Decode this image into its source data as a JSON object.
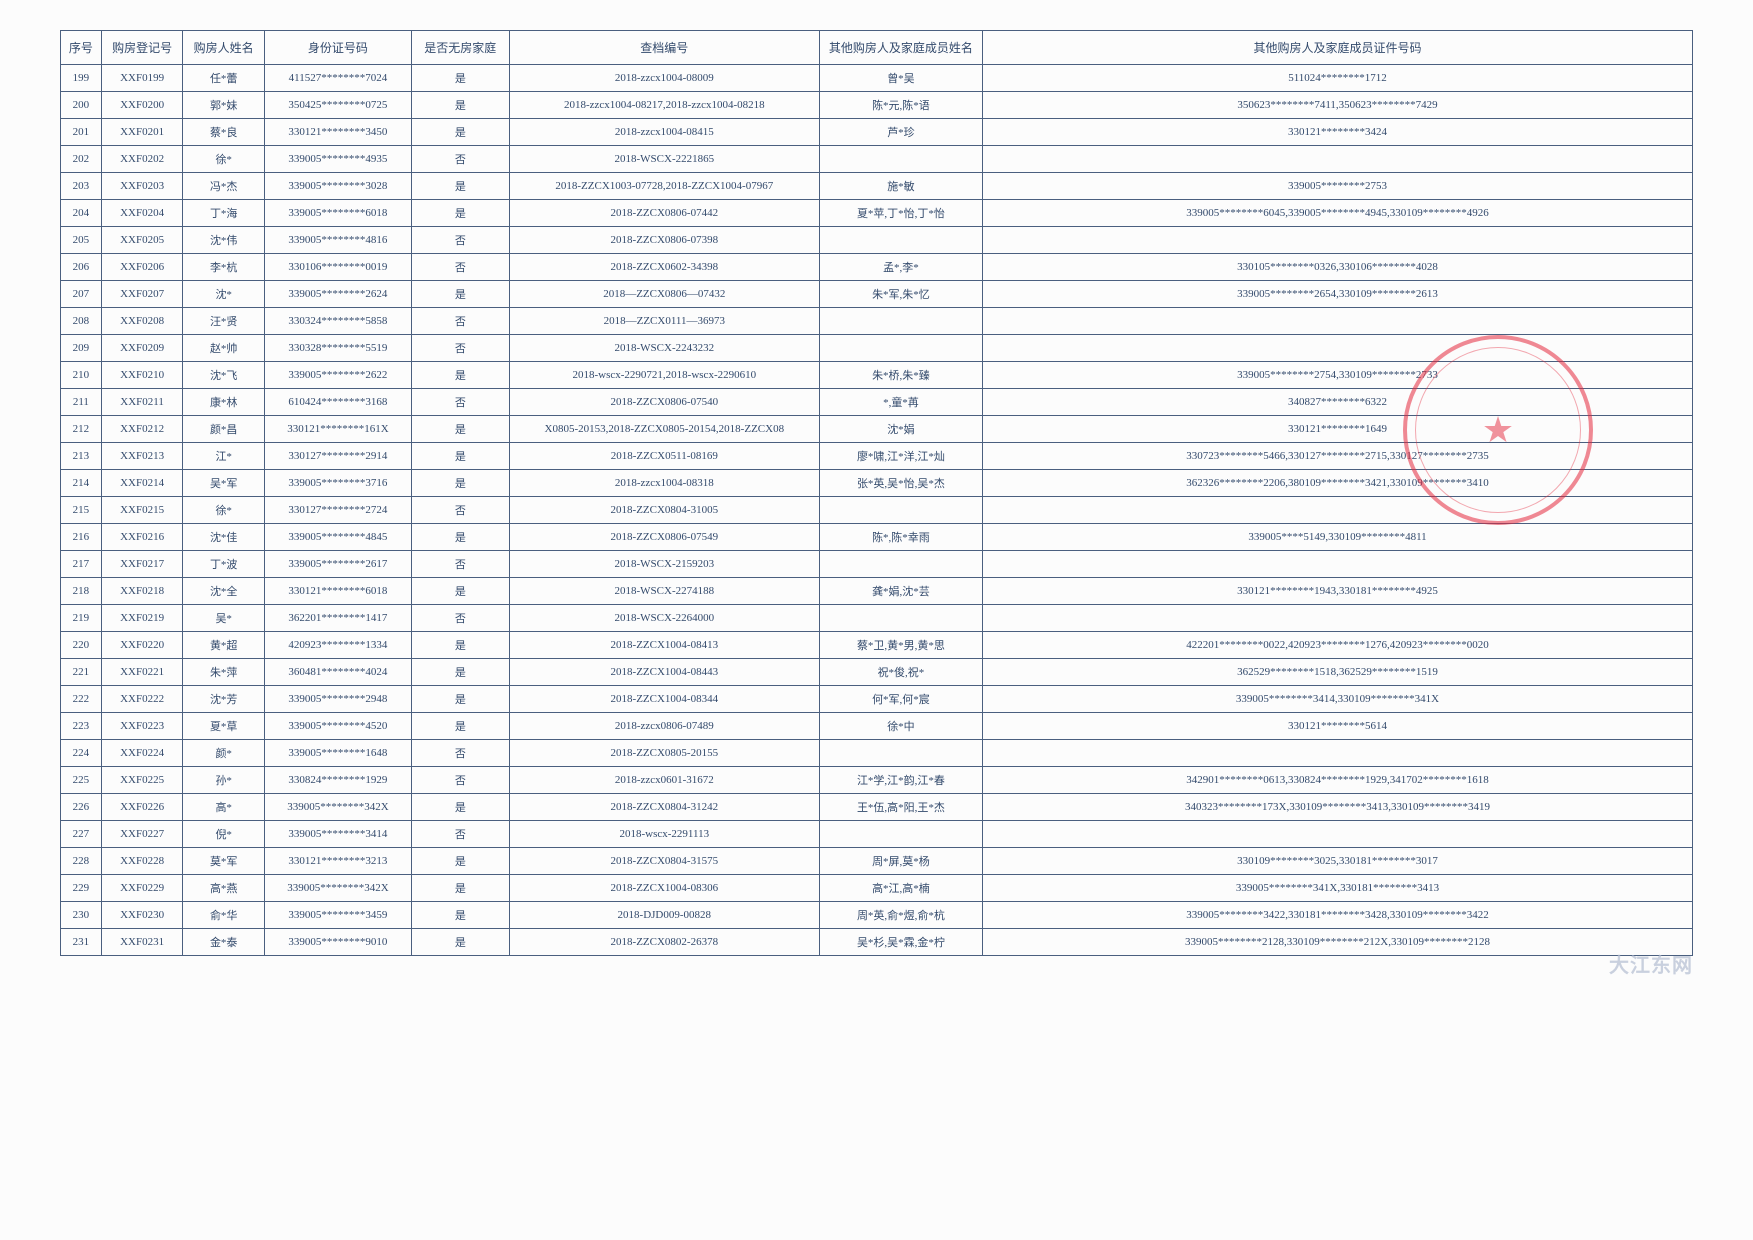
{
  "headers": {
    "seq": "序号",
    "reg": "购房登记号",
    "name": "购房人姓名",
    "id": "身份证号码",
    "nohouse": "是否无房家庭",
    "archive": "查档编号",
    "family": "其他购房人及家庭成员姓名",
    "family_id": "其他购房人及家庭成员证件号码"
  },
  "rows": [
    {
      "seq": "199",
      "reg": "XXF0199",
      "name": "任*蕾",
      "id": "411527********7024",
      "nohouse": "是",
      "archive": "2018-zzcx1004-08009",
      "family": "曾*吴",
      "family_id": "511024********1712"
    },
    {
      "seq": "200",
      "reg": "XXF0200",
      "name": "郭*妹",
      "id": "350425********0725",
      "nohouse": "是",
      "archive": "2018-zzcx1004-08217,2018-zzcx1004-08218",
      "family": "陈*元,陈*语",
      "family_id": "350623********7411,350623********7429"
    },
    {
      "seq": "201",
      "reg": "XXF0201",
      "name": "蔡*良",
      "id": "330121********3450",
      "nohouse": "是",
      "archive": "2018-zzcx1004-08415",
      "family": "芦*珍",
      "family_id": "330121********3424"
    },
    {
      "seq": "202",
      "reg": "XXF0202",
      "name": "徐*",
      "id": "339005********4935",
      "nohouse": "否",
      "archive": "2018-WSCX-2221865",
      "family": "",
      "family_id": ""
    },
    {
      "seq": "203",
      "reg": "XXF0203",
      "name": "冯*杰",
      "id": "339005********3028",
      "nohouse": "是",
      "archive": "2018-ZZCX1003-07728,2018-ZZCX1004-07967",
      "family": "施*敏",
      "family_id": "339005********2753"
    },
    {
      "seq": "204",
      "reg": "XXF0204",
      "name": "丁*海",
      "id": "339005********6018",
      "nohouse": "是",
      "archive": "2018-ZZCX0806-07442",
      "family": "夏*苹,丁*怡,丁*怡",
      "family_id": "339005********6045,339005********4945,330109********4926"
    },
    {
      "seq": "205",
      "reg": "XXF0205",
      "name": "沈*伟",
      "id": "339005********4816",
      "nohouse": "否",
      "archive": "2018-ZZCX0806-07398",
      "family": "",
      "family_id": ""
    },
    {
      "seq": "206",
      "reg": "XXF0206",
      "name": "李*杭",
      "id": "330106********0019",
      "nohouse": "否",
      "archive": "2018-ZZCX0602-34398",
      "family": "孟*,李*",
      "family_id": "330105********0326,330106********4028"
    },
    {
      "seq": "207",
      "reg": "XXF0207",
      "name": "沈*",
      "id": "339005********2624",
      "nohouse": "是",
      "archive": "2018—ZZCX0806—07432",
      "family": "朱*军,朱*忆",
      "family_id": "339005********2654,330109********2613"
    },
    {
      "seq": "208",
      "reg": "XXF0208",
      "name": "汪*贤",
      "id": "330324********5858",
      "nohouse": "否",
      "archive": "2018—ZZCX0111—36973",
      "family": "",
      "family_id": ""
    },
    {
      "seq": "209",
      "reg": "XXF0209",
      "name": "赵*帅",
      "id": "330328********5519",
      "nohouse": "否",
      "archive": "2018-WSCX-2243232",
      "family": "",
      "family_id": ""
    },
    {
      "seq": "210",
      "reg": "XXF0210",
      "name": "沈*飞",
      "id": "339005********2622",
      "nohouse": "是",
      "archive": "2018-wscx-2290721,2018-wscx-2290610",
      "family": "朱*桥,朱*臻",
      "family_id": "339005********2754,330109********2733"
    },
    {
      "seq": "211",
      "reg": "XXF0211",
      "name": "康*林",
      "id": "610424********3168",
      "nohouse": "否",
      "archive": "2018-ZZCX0806-07540",
      "family": "*,童*苒",
      "family_id": "340827********6322"
    },
    {
      "seq": "212",
      "reg": "XXF0212",
      "name": "颜*昌",
      "id": "330121********161X",
      "nohouse": "是",
      "archive": "X0805-20153,2018-ZZCX0805-20154,2018-ZZCX08",
      "family": "沈*娟",
      "family_id": "330121********1649"
    },
    {
      "seq": "213",
      "reg": "XXF0213",
      "name": "江*",
      "id": "330127********2914",
      "nohouse": "是",
      "archive": "2018-ZZCX0511-08169",
      "family": "廖*啸,江*洋,江*灿",
      "family_id": "330723********5466,330127********2715,330127********2735"
    },
    {
      "seq": "214",
      "reg": "XXF0214",
      "name": "吴*军",
      "id": "339005********3716",
      "nohouse": "是",
      "archive": "2018-zzcx1004-08318",
      "family": "张*英,吴*怡,吴*杰",
      "family_id": "362326********2206,380109********3421,330109********3410"
    },
    {
      "seq": "215",
      "reg": "XXF0215",
      "name": "徐*",
      "id": "330127********2724",
      "nohouse": "否",
      "archive": "2018-ZZCX0804-31005",
      "family": "",
      "family_id": ""
    },
    {
      "seq": "216",
      "reg": "XXF0216",
      "name": "沈*佳",
      "id": "339005********4845",
      "nohouse": "是",
      "archive": "2018-ZZCX0806-07549",
      "family": "陈*,陈*幸雨",
      "family_id": "339005****5149,330109********4811"
    },
    {
      "seq": "217",
      "reg": "XXF0217",
      "name": "丁*波",
      "id": "339005********2617",
      "nohouse": "否",
      "archive": "2018-WSCX-2159203",
      "family": "",
      "family_id": ""
    },
    {
      "seq": "218",
      "reg": "XXF0218",
      "name": "沈*全",
      "id": "330121********6018",
      "nohouse": "是",
      "archive": "2018-WSCX-2274188",
      "family": "龚*娟,沈*芸",
      "family_id": "330121********1943,330181********4925"
    },
    {
      "seq": "219",
      "reg": "XXF0219",
      "name": "吴*",
      "id": "362201********1417",
      "nohouse": "否",
      "archive": "2018-WSCX-2264000",
      "family": "",
      "family_id": ""
    },
    {
      "seq": "220",
      "reg": "XXF0220",
      "name": "黄*超",
      "id": "420923********1334",
      "nohouse": "是",
      "archive": "2018-ZZCX1004-08413",
      "family": "蔡*卫,黄*男,黄*思",
      "family_id": "422201********0022,420923********1276,420923********0020"
    },
    {
      "seq": "221",
      "reg": "XXF0221",
      "name": "朱*萍",
      "id": "360481********4024",
      "nohouse": "是",
      "archive": "2018-ZZCX1004-08443",
      "family": "祝*俊,祝*",
      "family_id": "362529********1518,362529********1519"
    },
    {
      "seq": "222",
      "reg": "XXF0222",
      "name": "沈*芳",
      "id": "339005********2948",
      "nohouse": "是",
      "archive": "2018-ZZCX1004-08344",
      "family": "何*军,何*宸",
      "family_id": "339005********3414,330109********341X"
    },
    {
      "seq": "223",
      "reg": "XXF0223",
      "name": "夏*草",
      "id": "339005********4520",
      "nohouse": "是",
      "archive": "2018-zzcx0806-07489",
      "family": "徐*中",
      "family_id": "330121********5614"
    },
    {
      "seq": "224",
      "reg": "XXF0224",
      "name": "颜*",
      "id": "339005********1648",
      "nohouse": "否",
      "archive": "2018-ZZCX0805-20155",
      "family": "",
      "family_id": ""
    },
    {
      "seq": "225",
      "reg": "XXF0225",
      "name": "孙*",
      "id": "330824********1929",
      "nohouse": "否",
      "archive": "2018-zzcx0601-31672",
      "family": "江*学,江*韵,江*春",
      "family_id": "342901********0613,330824********1929,341702********1618"
    },
    {
      "seq": "226",
      "reg": "XXF0226",
      "name": "高*",
      "id": "339005********342X",
      "nohouse": "是",
      "archive": "2018-ZZCX0804-31242",
      "family": "王*伍,高*阳,王*杰",
      "family_id": "340323********173X,330109********3413,330109********3419"
    },
    {
      "seq": "227",
      "reg": "XXF0227",
      "name": "倪*",
      "id": "339005********3414",
      "nohouse": "否",
      "archive": "2018-wscx-2291113",
      "family": "",
      "family_id": ""
    },
    {
      "seq": "228",
      "reg": "XXF0228",
      "name": "莫*军",
      "id": "330121********3213",
      "nohouse": "是",
      "archive": "2018-ZZCX0804-31575",
      "family": "周*屏,莫*杨",
      "family_id": "330109********3025,330181********3017"
    },
    {
      "seq": "229",
      "reg": "XXF0229",
      "name": "高*燕",
      "id": "339005********342X",
      "nohouse": "是",
      "archive": "2018-ZZCX1004-08306",
      "family": "高*江,高*楠",
      "family_id": "339005********341X,330181********3413"
    },
    {
      "seq": "230",
      "reg": "XXF0230",
      "name": "俞*华",
      "id": "339005********3459",
      "nohouse": "是",
      "archive": "2018-DJD009-00828",
      "family": "周*英,俞*煜,俞*杭",
      "family_id": "339005********3422,330181********3428,330109********3422"
    },
    {
      "seq": "231",
      "reg": "XXF0231",
      "name": "金*泰",
      "id": "339005********9010",
      "nohouse": "是",
      "archive": "2018-ZZCX0802-26378",
      "family": "吴*杉,吴*霖,金*柠",
      "family_id": "339005********2128,330109********212X,330109********2128"
    }
  ],
  "watermark": "大江东网"
}
